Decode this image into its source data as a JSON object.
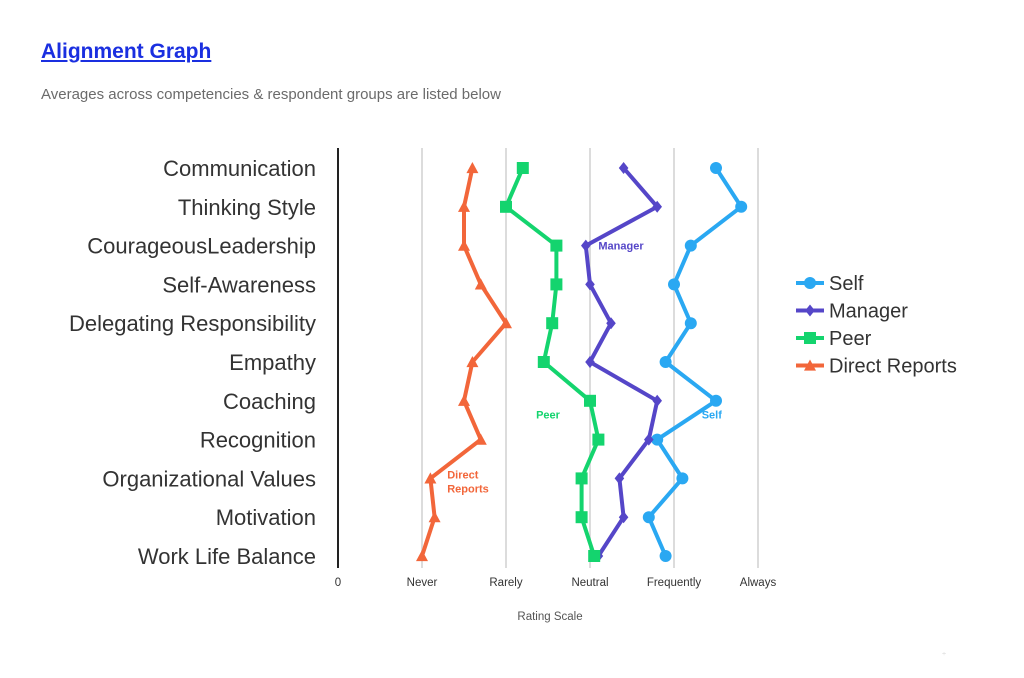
{
  "header": {
    "title": "Alignment Graph",
    "subtitle": "Averages across competencies & respondent groups are listed below"
  },
  "chart_data": {
    "type": "line",
    "orientation": "horizontal",
    "categories": [
      "Communication",
      "Thinking Style",
      "CourageousLeadership",
      "Self-Awareness",
      "Delegating Responsibility",
      "Empathy",
      "Coaching",
      "Recognition",
      "Organizational Values",
      "Motivation",
      "Work Life Balance"
    ],
    "x_ticks": [
      0,
      1,
      2,
      3,
      4,
      5
    ],
    "x_tick_labels": [
      "0",
      "Never",
      "Rarely",
      "Neutral",
      "Frequently",
      "Always"
    ],
    "xlim": [
      0,
      5
    ],
    "xlabel": "Rating Scale",
    "grid": "vertical",
    "legend_position": "right",
    "series": [
      {
        "name": "Self",
        "color": "#2aa8f2",
        "marker": "circle",
        "inline_label": [
          "Self"
        ],
        "values": [
          4.5,
          4.8,
          4.2,
          4.0,
          4.2,
          3.9,
          4.5,
          3.8,
          4.1,
          3.7,
          3.9
        ]
      },
      {
        "name": "Manager",
        "color": "#5546c8",
        "marker": "diamond",
        "inline_label": [
          "Manager"
        ],
        "values": [
          3.4,
          3.8,
          2.95,
          3.0,
          3.25,
          3.0,
          3.8,
          3.7,
          3.35,
          3.4,
          3.1
        ]
      },
      {
        "name": "Peer",
        "color": "#14d46e",
        "marker": "square",
        "inline_label": [
          "Peer"
        ],
        "values": [
          2.2,
          2.0,
          2.6,
          2.6,
          2.55,
          2.45,
          3.0,
          3.1,
          2.9,
          2.9,
          3.05
        ]
      },
      {
        "name": "Direct Reports",
        "color": "#f2663a",
        "marker": "triangle",
        "inline_label": [
          "Direct",
          "Reports"
        ],
        "values": [
          1.6,
          1.5,
          1.5,
          1.7,
          2.0,
          1.6,
          1.5,
          1.7,
          1.1,
          1.15,
          1.0
        ]
      }
    ]
  }
}
